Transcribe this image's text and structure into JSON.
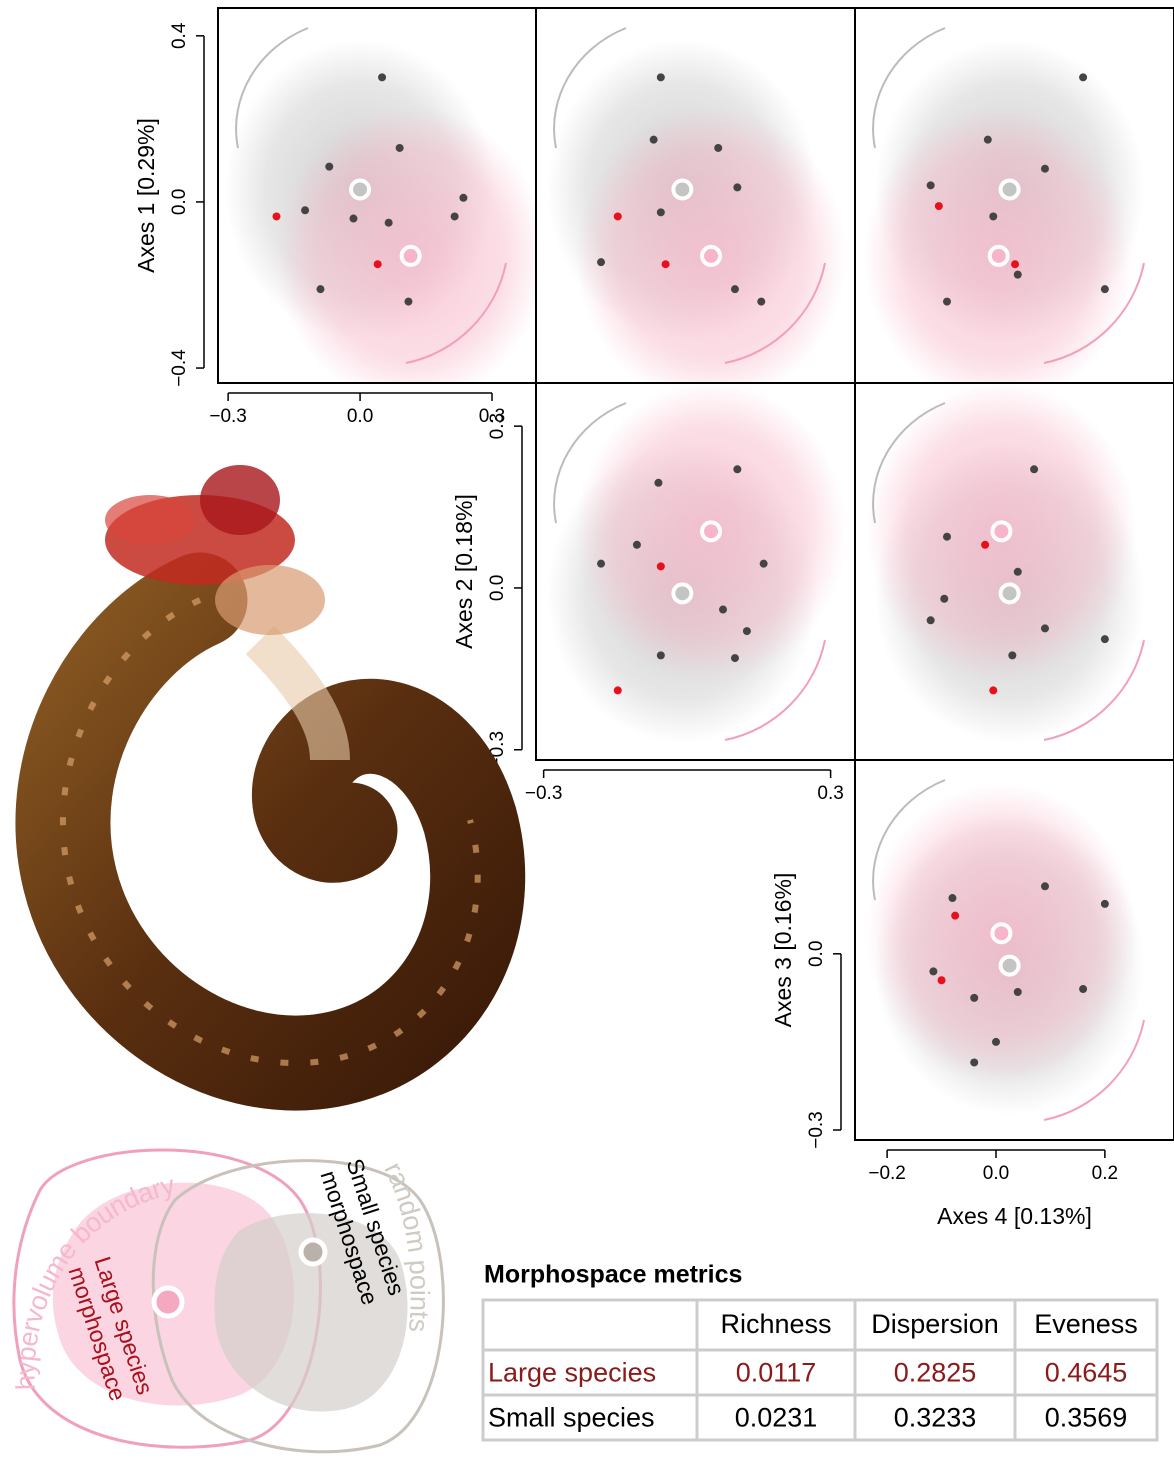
{
  "chart_data": [
    {
      "type": "scatter",
      "ylabel": "Axes 1 [0.29%]",
      "xlim": [
        -0.323,
        0.4
      ],
      "ylim": [
        -0.436,
        0.467
      ],
      "xticks": [
        {
          "value": -0.3,
          "label": "−0.3"
        },
        {
          "value": 0,
          "label": "0.0"
        },
        0.3
      ],
      "yticks": [
        {
          "value": -0.4,
          "label": "−0.4"
        },
        {
          "value": 0,
          "label": "0.0"
        },
        0.4
      ],
      "series": [
        {
          "color": "#444444",
          "marker": "dot",
          "x": [
            0.05,
            -0.07,
            -0.125,
            0.09,
            0.235,
            -0.09,
            0.11,
            -0.015,
            0.065,
            0.215
          ],
          "y": [
            0.3,
            0.085,
            -0.02,
            0.13,
            0.01,
            -0.21,
            -0.24,
            -0.04,
            -0.05,
            -0.035
          ]
        },
        {
          "color": "#e8101a",
          "marker": "dot",
          "x": [
            -0.19,
            0.04
          ],
          "y": [
            -0.035,
            -0.15
          ]
        },
        {
          "color": "#c4c4c4",
          "marker": "ring",
          "x": [
            0.0
          ],
          "y": [
            0.03
          ]
        },
        {
          "color": "#f7b6c8",
          "marker": "ring",
          "x": [
            0.115
          ],
          "y": [
            -0.13
          ]
        }
      ]
    },
    {
      "type": "scatter",
      "xlim": [
        -0.316,
        0.351
      ],
      "ylim": [
        -0.436,
        0.467
      ],
      "series": [
        {
          "color": "#444444",
          "marker": "dot",
          "x": [
            -0.055,
            -0.07,
            0.065,
            0.105,
            -0.18,
            0.155,
            -0.055,
            0.1
          ],
          "y": [
            0.3,
            0.15,
            0.13,
            0.035,
            -0.145,
            -0.24,
            -0.025,
            -0.21
          ]
        },
        {
          "color": "#e8101a",
          "marker": "dot",
          "x": [
            -0.145,
            -0.045
          ],
          "y": [
            -0.035,
            -0.15
          ]
        },
        {
          "color": "#c4c4c4",
          "marker": "ring",
          "x": [
            -0.01
          ],
          "y": [
            0.03
          ]
        },
        {
          "color": "#f7b6c8",
          "marker": "ring",
          "x": [
            0.05
          ],
          "y": [
            -0.13
          ]
        }
      ]
    },
    {
      "type": "scatter",
      "xlim": [
        -0.259,
        0.327
      ],
      "ylim": [
        -0.436,
        0.467
      ],
      "series": [
        {
          "color": "#444444",
          "marker": "dot",
          "x": [
            0.16,
            -0.015,
            -0.12,
            0.09,
            0.2,
            -0.09,
            -0.005,
            0.04
          ],
          "y": [
            0.3,
            0.15,
            0.04,
            0.08,
            -0.21,
            -0.24,
            -0.035,
            -0.175
          ]
        },
        {
          "color": "#e8101a",
          "marker": "dot",
          "x": [
            -0.105,
            0.035
          ],
          "y": [
            -0.01,
            -0.15
          ]
        },
        {
          "color": "#c4c4c4",
          "marker": "ring",
          "x": [
            0.025
          ],
          "y": [
            0.03
          ]
        },
        {
          "color": "#f7b6c8",
          "marker": "ring",
          "x": [
            0.005
          ],
          "y": [
            -0.13
          ]
        }
      ]
    },
    {
      "type": "scatter",
      "ylabel": "Axes 2 [0.18%]",
      "xlim": [
        -0.316,
        0.351
      ],
      "ylim": [
        -0.319,
        0.38
      ],
      "xticks": [
        {
          "value": -0.3,
          "label": "−0.3"
        },
        0.3
      ],
      "yticks": [
        {
          "value": -0.3,
          "label": "−0.3"
        },
        {
          "value": 0,
          "label": "0.0"
        },
        0.3
      ],
      "series": [
        {
          "color": "#444444",
          "marker": "dot",
          "x": [
            0.105,
            -0.06,
            -0.105,
            -0.18,
            0.075,
            0.125,
            -0.055,
            0.1,
            0.16
          ],
          "y": [
            0.22,
            0.195,
            0.08,
            0.045,
            -0.04,
            -0.08,
            -0.125,
            -0.13,
            0.045
          ]
        },
        {
          "color": "#e8101a",
          "marker": "dot",
          "x": [
            -0.055,
            -0.145
          ],
          "y": [
            0.04,
            -0.19
          ]
        },
        {
          "color": "#c4c4c4",
          "marker": "ring",
          "x": [
            -0.01
          ],
          "y": [
            -0.01
          ]
        },
        {
          "color": "#f7b6c8",
          "marker": "ring",
          "x": [
            0.05
          ],
          "y": [
            0.105
          ]
        }
      ]
    },
    {
      "type": "scatter",
      "xlim": [
        -0.259,
        0.327
      ],
      "ylim": [
        -0.319,
        0.38
      ],
      "series": [
        {
          "color": "#444444",
          "marker": "dot",
          "x": [
            0.07,
            -0.09,
            0.04,
            -0.12,
            0.09,
            0.2,
            0.03,
            -0.095
          ],
          "y": [
            0.22,
            0.095,
            0.03,
            -0.06,
            -0.075,
            -0.095,
            -0.125,
            -0.02
          ]
        },
        {
          "color": "#e8101a",
          "marker": "dot",
          "x": [
            -0.02,
            -0.005
          ],
          "y": [
            0.08,
            -0.19
          ]
        },
        {
          "color": "#c4c4c4",
          "marker": "ring",
          "x": [
            0.025
          ],
          "y": [
            -0.01
          ]
        },
        {
          "color": "#f7b6c8",
          "marker": "ring",
          "x": [
            0.01
          ],
          "y": [
            0.105
          ]
        }
      ]
    },
    {
      "type": "scatter",
      "ylabel": "Axes 3 [0.16%]",
      "xlabel": "Axes 4 [0.13%]",
      "xlim": [
        -0.259,
        0.327
      ],
      "ylim": [
        -0.317,
        0.33
      ],
      "xticks": [
        {
          "value": -0.2,
          "label": "−0.2"
        },
        {
          "value": 0,
          "label": "0.0"
        },
        0.2
      ],
      "yticks": [
        {
          "value": -0.3,
          "label": "−0.3"
        },
        {
          "value": 0,
          "label": "0.0"
        }
      ],
      "series": [
        {
          "color": "#444444",
          "marker": "dot",
          "x": [
            0.2,
            -0.08,
            0.09,
            -0.115,
            -0.04,
            0,
            -0.04,
            0.16,
            0.04
          ],
          "y": [
            0.085,
            0.095,
            0.115,
            -0.03,
            -0.075,
            -0.15,
            -0.185,
            -0.06,
            -0.065
          ]
        },
        {
          "color": "#e8101a",
          "marker": "dot",
          "x": [
            -0.075,
            -0.1
          ],
          "y": [
            0.065,
            -0.045
          ]
        },
        {
          "color": "#c4c4c4",
          "marker": "ring",
          "x": [
            0.025
          ],
          "y": [
            -0.02
          ]
        },
        {
          "color": "#f7b6c8",
          "marker": "ring",
          "x": [
            0.01
          ],
          "y": [
            0.035
          ]
        }
      ]
    }
  ],
  "diagram": {
    "boundary": "hypervolume boundary",
    "random": "random points",
    "large": [
      "Large species",
      "morphospace"
    ],
    "small": [
      "Small species",
      "morphospace"
    ]
  },
  "table": {
    "title": "Morphospace metrics",
    "header": [
      "Richness",
      "Dispersion",
      "Eveness"
    ],
    "rows": [
      {
        "label": "Large species",
        "color": "#8b1a1a",
        "values": [
          0.0117,
          0.2825,
          0.4645
        ]
      },
      {
        "label": "Small species",
        "color": "#000000",
        "values": [
          0.0231,
          0.3233,
          0.3569
        ]
      }
    ]
  }
}
